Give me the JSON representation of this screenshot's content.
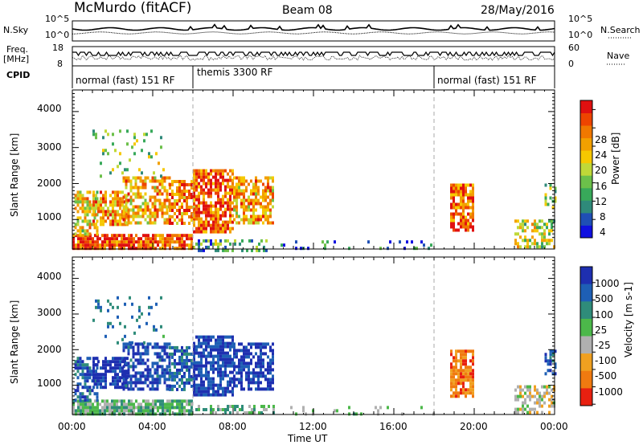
{
  "header": {
    "title": "McMurdo (fitACF)",
    "beam": "Beam 08",
    "date": "28/May/2016"
  },
  "side_labels": {
    "nsky": "N.Sky",
    "freq": "Freq.",
    "freq_unit": "[MHz]",
    "cpid": "CPID",
    "nsearch": "N.Search",
    "nave": "Nave"
  },
  "small_axes": {
    "noise_left_ticks": [
      "10^5",
      "10^0"
    ],
    "noise_right_ticks": [
      "10^5",
      "10^0"
    ],
    "freq_left_ticks": [
      "18",
      "8"
    ],
    "nave_right_ticks": [
      "60",
      "0"
    ]
  },
  "cpid_segments": [
    {
      "label": "normal (fast) 151 RF",
      "start_h": 0,
      "end_h": 6
    },
    {
      "label": "themis 3300 RF",
      "start_h": 6,
      "end_h": 18
    },
    {
      "label": "normal (fast) 151 RF",
      "start_h": 18,
      "end_h": 24
    }
  ],
  "chart_data": [
    {
      "type": "heatmap",
      "name": "power",
      "ylabel": "Slant Range [km]",
      "yticks": [
        1000,
        2000,
        3000,
        4000
      ],
      "ylim": [
        180,
        4600
      ],
      "xlim": [
        0,
        24
      ],
      "colorbar_label": "Power [dB]",
      "colorbar_ticks": [
        4,
        8,
        12,
        16,
        20,
        24,
        28
      ],
      "colorbar_range": [
        0,
        30
      ],
      "colors": [
        "#1010e0",
        "#1f4fb5",
        "#2f8a7a",
        "#38a95a",
        "#6cc04a",
        "#c0d838",
        "#f6c800",
        "#f2a000",
        "#f07800",
        "#ee4400",
        "#e01010"
      ]
    },
    {
      "type": "heatmap",
      "name": "velocity",
      "ylabel": "Slant Range [km]",
      "yticks": [
        1000,
        2000,
        3000,
        4000
      ],
      "ylim": [
        180,
        4600
      ],
      "xlim": [
        0,
        24
      ],
      "colorbar_label": "Velocity [m s-1]",
      "colorbar_ticks": [
        1000,
        500,
        100,
        25,
        -25,
        -100,
        -500,
        -1000
      ],
      "colors": [
        "#1e2fb0",
        "#1e5fb5",
        "#2f8c7a",
        "#4cb84a",
        "#b0b0b0",
        "#f0a020",
        "#f07a10",
        "#e82010"
      ]
    }
  ],
  "xaxis": {
    "ticks": [
      "00:00",
      "04:00",
      "08:00",
      "12:00",
      "16:00",
      "20:00",
      "00:00"
    ],
    "label": "Time UT"
  }
}
